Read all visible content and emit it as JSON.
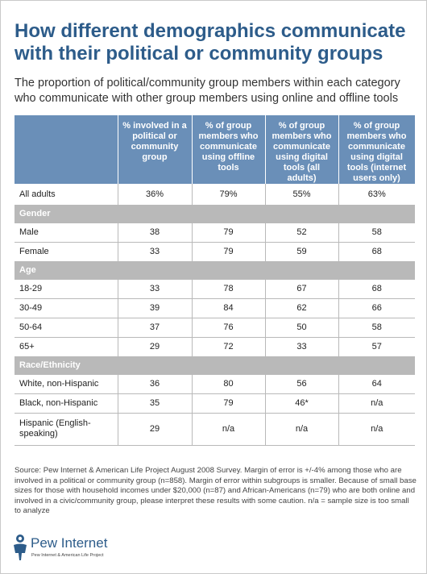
{
  "title": "How different demographics communicate with their political or community groups",
  "subtitle": "The proportion of political/community group members within each category who communicate with other group members using online and offline tools",
  "table": {
    "headers": [
      "",
      "% involved in a political or community group",
      "% of group members who communicate using offline tools",
      "% of group members who communicate using digital tools (all adults)",
      "% of group members who communicate using digital tools (internet users only)"
    ],
    "all_adults": {
      "label": "All adults",
      "values": [
        "36%",
        "79%",
        "55%",
        "63%"
      ]
    },
    "sections": [
      {
        "title": "Gender",
        "rows": [
          {
            "label": "Male",
            "values": [
              "38",
              "79",
              "52",
              "58"
            ]
          },
          {
            "label": "Female",
            "values": [
              "33",
              "79",
              "59",
              "68"
            ]
          }
        ]
      },
      {
        "title": "Age",
        "rows": [
          {
            "label": "18-29",
            "values": [
              "33",
              "78",
              "67",
              "68"
            ]
          },
          {
            "label": "30-49",
            "values": [
              "39",
              "84",
              "62",
              "66"
            ]
          },
          {
            "label": "50-64",
            "values": [
              "37",
              "76",
              "50",
              "58"
            ]
          },
          {
            "label": "65+",
            "values": [
              "29",
              "72",
              "33",
              "57"
            ]
          }
        ]
      },
      {
        "title": "Race/Ethnicity",
        "rows": [
          {
            "label": "White, non-Hispanic",
            "values": [
              "36",
              "80",
              "56",
              "64"
            ]
          },
          {
            "label": "Black, non-Hispanic",
            "values": [
              "35",
              "79",
              "46*",
              "n/a"
            ]
          },
          {
            "label": "Hispanic (English-speaking)",
            "values": [
              "29",
              "n/a",
              "n/a",
              "n/a"
            ]
          }
        ]
      }
    ]
  },
  "source": "Source: Pew Internet & American Life Project August 2008 Survey. Margin of error is +/-4% among those who are involved in a political or community group (n=858). Margin of error within subgroups is smaller. Because of small base sizes for those with household incomes under $20,000 (n=87) and African-Americans (n=79) who are both online and involved in a civic/community group, please interpret these results with some caution. n/a = sample size is too small to analyze",
  "logo": {
    "wordmark": "Pew Internet",
    "tagline": "Pew Internet & American Life Project",
    "icon": "pew-person-icon",
    "color": "#2d5c8a"
  },
  "colors": {
    "title": "#2d5c8a",
    "header_bg": "#6a8fb8",
    "section_bg": "#b9b9b9"
  }
}
